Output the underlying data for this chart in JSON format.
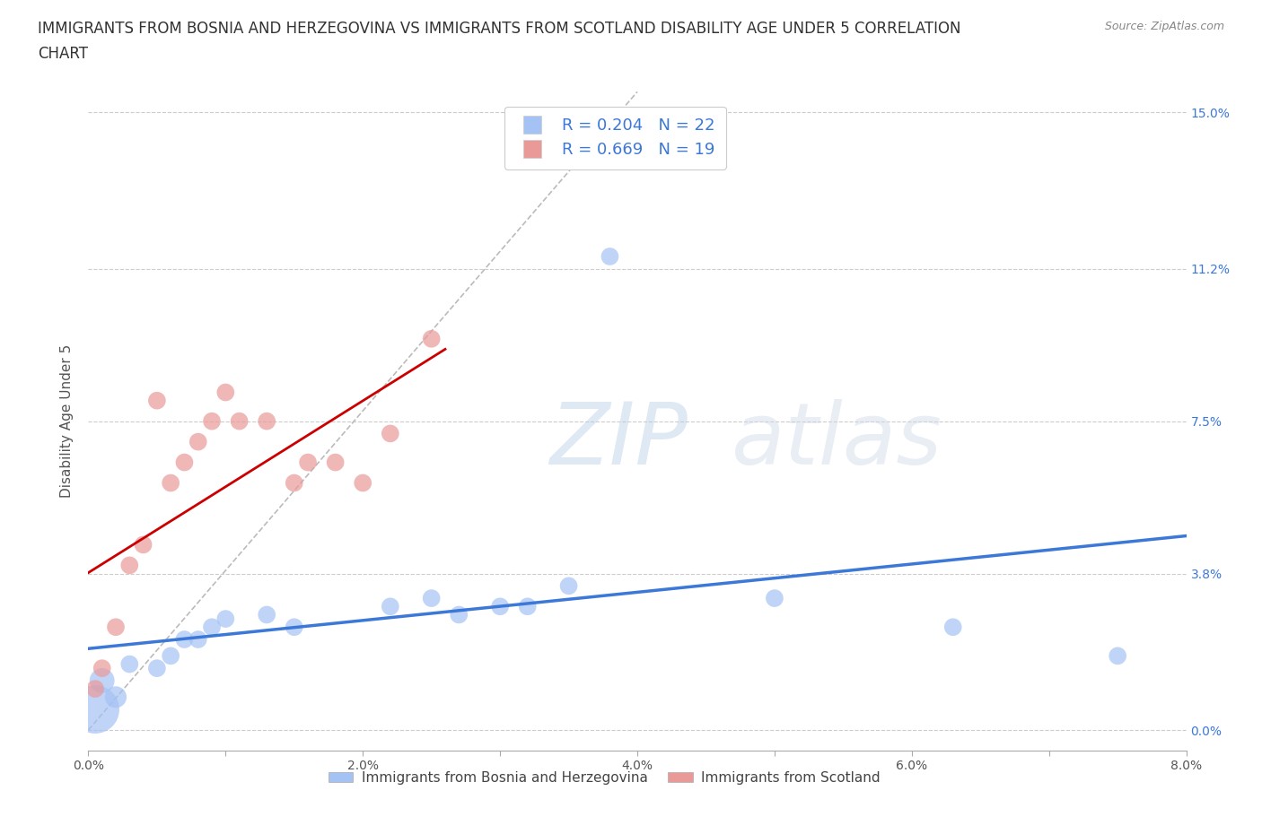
{
  "title_line1": "IMMIGRANTS FROM BOSNIA AND HERZEGOVINA VS IMMIGRANTS FROM SCOTLAND DISABILITY AGE UNDER 5 CORRELATION",
  "title_line2": "CHART",
  "source": "Source: ZipAtlas.com",
  "ylabel": "Disability Age Under 5",
  "xlim": [
    0.0,
    0.08
  ],
  "ylim": [
    -0.005,
    0.155
  ],
  "xticks": [
    0.0,
    0.01,
    0.02,
    0.03,
    0.04,
    0.05,
    0.06,
    0.07,
    0.08
  ],
  "xtick_labels": [
    "0.0%",
    "",
    "2.0%",
    "",
    "4.0%",
    "",
    "6.0%",
    "",
    "8.0%"
  ],
  "ytick_labels": [
    "15.0%",
    "11.2%",
    "7.5%",
    "3.8%",
    "0.0%"
  ],
  "yticks": [
    0.15,
    0.112,
    0.075,
    0.038,
    0.0
  ],
  "R_blue": 0.204,
  "N_blue": 22,
  "R_pink": 0.669,
  "N_pink": 19,
  "blue_color": "#a4c2f4",
  "pink_color": "#ea9999",
  "blue_line_color": "#3c78d8",
  "pink_line_color": "#cc0000",
  "grid_color": "#cccccc",
  "grid_style": "--",
  "watermark_color": "#c9daf8",
  "title_fontsize": 12,
  "label_fontsize": 11,
  "tick_fontsize": 10,
  "legend_label_blue": "Immigrants from Bosnia and Herzegovina",
  "legend_label_pink": "Immigrants from Scotland",
  "blue_x": [
    0.0005,
    0.001,
    0.002,
    0.003,
    0.005,
    0.006,
    0.007,
    0.008,
    0.009,
    0.01,
    0.013,
    0.015,
    0.022,
    0.025,
    0.027,
    0.03,
    0.032,
    0.035,
    0.038,
    0.05,
    0.063,
    0.075
  ],
  "blue_y": [
    0.005,
    0.012,
    0.008,
    0.016,
    0.015,
    0.018,
    0.022,
    0.022,
    0.025,
    0.027,
    0.028,
    0.025,
    0.03,
    0.032,
    0.028,
    0.03,
    0.03,
    0.035,
    0.115,
    0.032,
    0.025,
    0.018
  ],
  "blue_sizes": [
    1500,
    400,
    300,
    200,
    200,
    200,
    200,
    200,
    200,
    200,
    200,
    200,
    200,
    200,
    200,
    200,
    200,
    200,
    200,
    200,
    200,
    200
  ],
  "pink_x": [
    0.0005,
    0.001,
    0.002,
    0.003,
    0.004,
    0.005,
    0.006,
    0.007,
    0.008,
    0.009,
    0.01,
    0.011,
    0.013,
    0.015,
    0.016,
    0.018,
    0.02,
    0.022,
    0.025
  ],
  "pink_y": [
    0.01,
    0.015,
    0.025,
    0.04,
    0.045,
    0.08,
    0.06,
    0.065,
    0.07,
    0.075,
    0.082,
    0.075,
    0.075,
    0.06,
    0.065,
    0.065,
    0.06,
    0.072,
    0.095
  ],
  "pink_sizes": [
    200,
    200,
    200,
    200,
    200,
    200,
    200,
    200,
    200,
    200,
    200,
    200,
    200,
    200,
    200,
    200,
    200,
    200,
    200
  ]
}
